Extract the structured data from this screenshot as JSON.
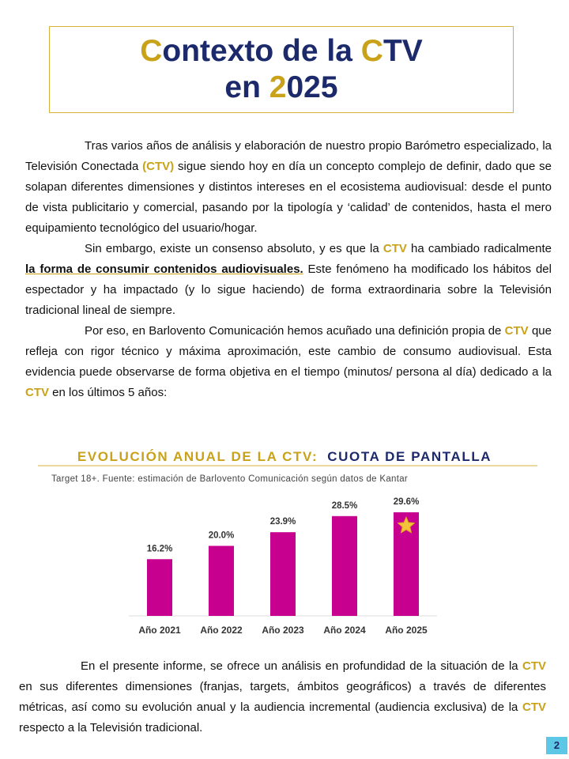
{
  "title": {
    "lines": [
      [
        {
          "text": "C",
          "accent": true
        },
        {
          "text": "ontexto de la "
        },
        {
          "text": "C",
          "accent": true
        },
        {
          "text": "TV"
        }
      ],
      [
        {
          "text": "en "
        },
        {
          "text": "2",
          "accent": true
        },
        {
          "text": "025"
        }
      ]
    ]
  },
  "intro": [
    {
      "runs": [
        {
          "text": "Tras varios años de análisis y elaboración de nuestro propio Barómetro especializado, la Televisión Conectada "
        },
        {
          "text": "(CTV)",
          "style": "ctv"
        },
        {
          "text": " sigue siendo hoy en día un concepto complejo de definir, dado que se solapan diferentes dimensiones y distintos intereses en el ecosistema audiovisual: desde el punto de vista publicitario y comercial, pasando por la tipología y ‘calidad’ de contenidos, hasta el mero equipamiento tecnológico del usuario/hogar."
        }
      ]
    },
    {
      "runs": [
        {
          "text": "Sin embargo, existe un consenso absoluto, y es que la "
        },
        {
          "text": "CTV",
          "style": "ctv"
        },
        {
          "text": " ha cambiado radicalmente "
        },
        {
          "text": "la forma de consumir contenidos audiovisuales.",
          "style": "underline"
        },
        {
          "text": " Este fenómeno ha modificado los hábitos del espectador y ha impactado (y lo sigue haciendo) de forma extraordinaria sobre la Televisión tradicional lineal de siempre."
        }
      ]
    },
    {
      "runs": [
        {
          "text": "Por eso, en Barlovento Comunicación  hemos acuñado una definición propia de "
        },
        {
          "text": "CTV",
          "style": "ctv"
        },
        {
          "text": " que refleja con rigor técnico y máxima aproximación, este cambio de consumo audiovisual. Esta evidencia puede observarse de forma objetiva en el tiempo (minutos/ persona al día) dedicado a la "
        },
        {
          "text": "CTV",
          "style": "ctv"
        },
        {
          "text": " en los últimos 5 años:"
        }
      ]
    }
  ],
  "chart_data": {
    "type": "bar",
    "title": {
      "lead": "EVOLUCIÓN ANUAL DE LA CTV:",
      "rest": "CUOTA DE PANTALLA"
    },
    "subtitle": "Target 18+. Fuente: estimación de Barlovento Comunicación según datos de Kantar",
    "categories": [
      "Año 2021",
      "Año 2022",
      "Año 2023",
      "Año 2024",
      "Año 2025"
    ],
    "values": [
      16.2,
      20.0,
      23.9,
      28.5,
      29.6
    ],
    "value_labels": [
      "16.2%",
      "20.0%",
      "23.9%",
      "28.5%",
      "29.6%"
    ],
    "color": "#c8008f",
    "ylim": [
      0,
      35
    ]
  },
  "closing": [
    {
      "runs": [
        {
          "text": "En el presente informe, se ofrece un análisis en profundidad de la situación de la "
        },
        {
          "text": "CTV",
          "style": "ctv"
        },
        {
          "text": " en sus diferentes dimensiones (franjas, targets, ámbitos geográficos) a través de diferentes métricas, así como su evolución anual y la audiencia incremental (audiencia exclusiva) de la "
        },
        {
          "text": "CTV",
          "style": "ctv"
        },
        {
          "text": " respecto a la Televisión tradicional."
        }
      ]
    }
  ],
  "page_number": "2"
}
